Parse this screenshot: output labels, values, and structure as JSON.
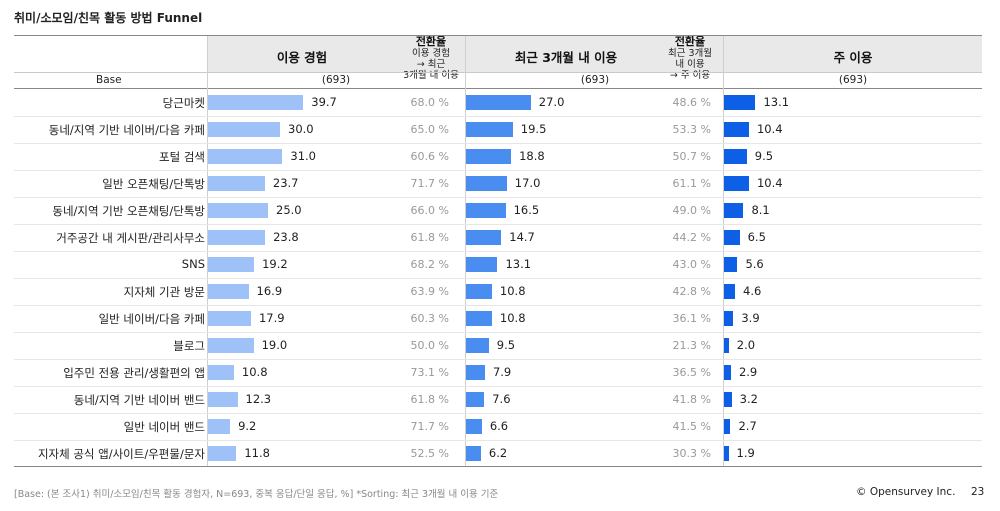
{
  "title": "취미/소모임/친목 활동 방법 Funnel",
  "headers": {
    "col1": "이용 경험",
    "rate1_title": "전환율",
    "rate1_lines": [
      "이용 경험",
      "→ 최근",
      "3개월 내 이용"
    ],
    "col2": "최근 3개월 내 이용",
    "rate2_title": "전환율",
    "rate2_lines": [
      "최근 3개월",
      "내 이용",
      "→ 주 이용"
    ],
    "col3": "주 이용"
  },
  "base": {
    "label": "Base",
    "n1": "(693)",
    "n2": "(693)",
    "n3": "(693)"
  },
  "chart_data": {
    "type": "bar",
    "orientation": "horizontal",
    "title": "취미/소모임/친목 활동 방법 Funnel",
    "categories": [
      "당근마켓",
      "동네/지역 기반 네이버/다음 카페",
      "포털 검색",
      "일반 오픈채팅/단톡방",
      "동네/지역 기반 오픈채팅/단톡방",
      "거주공간 내 게시판/관리사무소",
      "SNS",
      "지자체 기관 방문",
      "일반 네이버/다음 카페",
      "블로그",
      "입주민 전용 관리/생활편의 앱",
      "동네/지역 기반 네이버 밴드",
      "일반 네이버 밴드",
      "지자체 공식 앱/사이트/우편물/문자"
    ],
    "series": [
      {
        "name": "이용 경험",
        "values": [
          39.7,
          30.0,
          31.0,
          23.7,
          25.0,
          23.8,
          19.2,
          16.9,
          17.9,
          19.0,
          10.8,
          12.3,
          9.2,
          11.8
        ]
      },
      {
        "name": "최근 3개월 내 이용",
        "values": [
          27.0,
          19.5,
          18.8,
          17.0,
          16.5,
          14.7,
          13.1,
          10.8,
          10.8,
          9.5,
          7.9,
          7.6,
          6.6,
          6.2
        ]
      },
      {
        "name": "주 이용",
        "values": [
          13.1,
          10.4,
          9.5,
          10.4,
          8.1,
          6.5,
          5.6,
          4.6,
          3.9,
          2.0,
          2.9,
          3.2,
          2.7,
          1.9
        ]
      }
    ],
    "rates": [
      {
        "name": "전환율 (이용 경험 → 최근 3개월 내 이용)",
        "values": [
          "68.0 %",
          "65.0 %",
          "60.6 %",
          "71.7 %",
          "66.0 %",
          "61.8 %",
          "68.2 %",
          "63.9 %",
          "60.3 %",
          "50.0 %",
          "73.1 %",
          "61.8 %",
          "71.7 %",
          "52.5 %"
        ]
      },
      {
        "name": "전환율 (최근 3개월 내 이용 → 주 이용)",
        "values": [
          "48.6 %",
          "53.3 %",
          "50.7 %",
          "61.1 %",
          "49.0 %",
          "44.2 %",
          "43.0 %",
          "42.8 %",
          "36.1 %",
          "21.3 %",
          "36.5 %",
          "41.8 %",
          "41.5 %",
          "30.3 %"
        ]
      }
    ],
    "value_max": 40
  },
  "footer": {
    "note": "[Base: (본 조사1) 취미/소모임/친목 활동 경험자, N=693, 중복 응답/단일 응답, %] *Sorting: 최근 3개월 내 이용 기준",
    "brand": "© Opensurvey Inc.",
    "page": "23"
  },
  "colors": {
    "series1": "#9ec1f7",
    "series2": "#4a8df0",
    "series3": "#0d5fe6",
    "header_bg": "#e9e9e9",
    "rate_text": "#999999"
  }
}
